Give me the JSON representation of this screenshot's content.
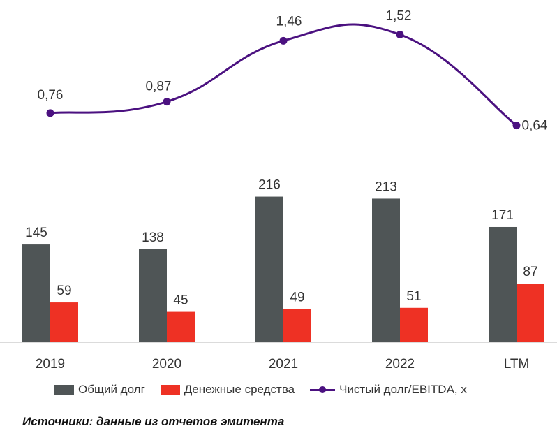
{
  "chart_data": {
    "type": "bar+line",
    "categories": [
      "2019",
      "2020",
      "2021",
      "2022",
      "LTM"
    ],
    "series": [
      {
        "name": "Общий долг",
        "type": "bar",
        "color": "#4f5556",
        "values": [
          145,
          138,
          216,
          213,
          171
        ]
      },
      {
        "name": "Денежные средства",
        "type": "bar",
        "color": "#ee3124",
        "values": [
          59,
          45,
          49,
          51,
          87
        ]
      },
      {
        "name": "Чистый долг/EBITDA, x",
        "type": "line",
        "color": "#4b1180",
        "values": [
          0.76,
          0.87,
          1.46,
          1.52,
          0.64
        ],
        "labels": [
          "0,76",
          "0,87",
          "1,46",
          "1,52",
          "0,64"
        ]
      }
    ],
    "grid": false,
    "legend_position": "bottom"
  },
  "legend": {
    "item1": "Общий долг",
    "item2": "Денежные средства",
    "item3": "Чистый долг/EBITDA, x"
  },
  "source": "Источники: данные из отчетов эмитента"
}
